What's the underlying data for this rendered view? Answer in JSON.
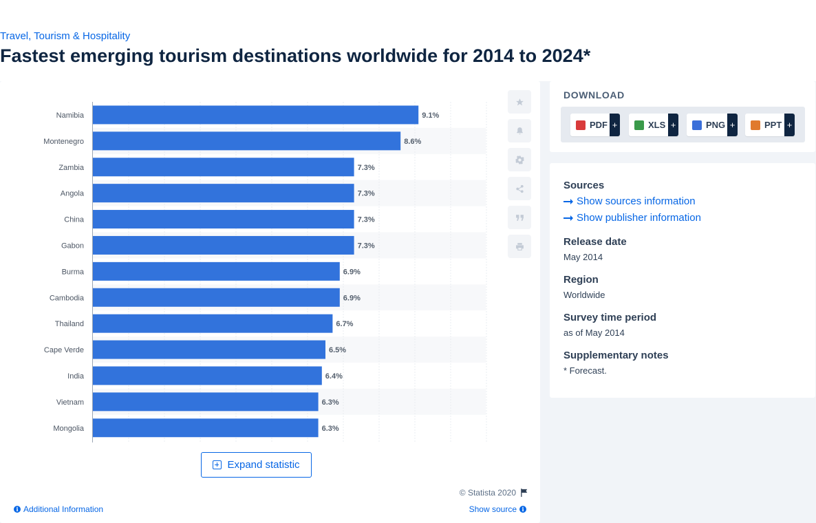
{
  "breadcrumb": "Travel, Tourism & Hospitality",
  "title": "Fastest emerging tourism destinations worldwide for 2014 to 2024*",
  "chart_data": {
    "type": "bar",
    "orientation": "horizontal",
    "categories": [
      "Namibia",
      "Montenegro",
      "Zambia",
      "Angola",
      "China",
      "Gabon",
      "Burma",
      "Cambodia",
      "Thailand",
      "Cape Verde",
      "India",
      "Vietnam",
      "Mongolia"
    ],
    "values": [
      9.1,
      8.6,
      7.3,
      7.3,
      7.3,
      7.3,
      6.9,
      6.9,
      6.7,
      6.5,
      6.4,
      6.3,
      6.3
    ],
    "value_labels": [
      "9.1%",
      "8.6%",
      "7.3%",
      "7.3%",
      "7.3%",
      "7.3%",
      "6.9%",
      "6.9%",
      "6.7%",
      "6.5%",
      "6.4%",
      "6.3%",
      "6.3%"
    ],
    "xlim": [
      0,
      11
    ],
    "grid": true,
    "bar_color": "#3273dc",
    "legend": "none"
  },
  "toolbar": {
    "icons": [
      "star-icon",
      "bell-icon",
      "gear-icon",
      "share-icon",
      "quote-icon",
      "print-icon"
    ]
  },
  "expand_label": "Expand statistic",
  "copyright": "© Statista 2020",
  "additional_info": "Additional Information",
  "show_source": "Show source",
  "download": {
    "title": "DOWNLOAD",
    "buttons": [
      {
        "label": "PDF",
        "color": "#d93b3b",
        "plus": "+"
      },
      {
        "label": "XLS",
        "color": "#3a9a4a",
        "plus": "+"
      },
      {
        "label": "PNG",
        "color": "#3b6fd9",
        "plus": "+"
      },
      {
        "label": "PPT",
        "color": "#e07a2e",
        "plus": "+"
      }
    ]
  },
  "meta": {
    "sources_heading": "Sources",
    "show_sources": "Show sources information",
    "show_publisher": "Show publisher information",
    "release_heading": "Release date",
    "release_value": "May 2014",
    "region_heading": "Region",
    "region_value": "Worldwide",
    "survey_heading": "Survey time period",
    "survey_value": "as of May 2014",
    "notes_heading": "Supplementary notes",
    "notes_value": "* Forecast."
  },
  "colors": {
    "accent": "#0666e5",
    "title": "#0f2541",
    "background": "#f1f4f8"
  }
}
